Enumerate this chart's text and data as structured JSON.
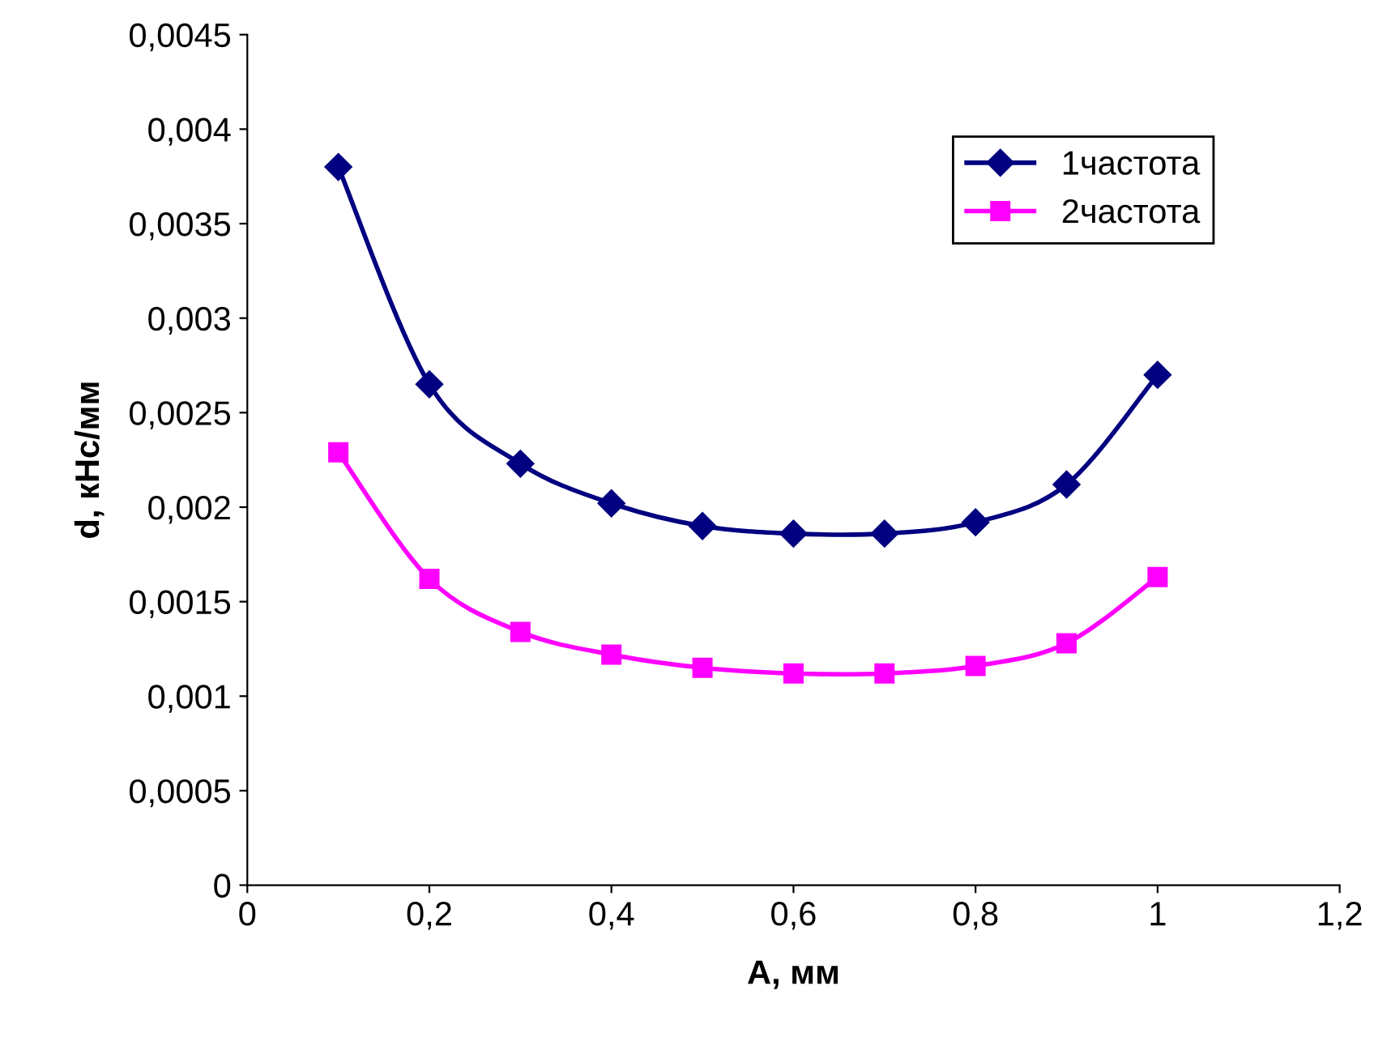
{
  "chart_data": {
    "type": "line",
    "xlabel": "A, мм",
    "ylabel": "d, кНс/мм",
    "x": [
      0.1,
      0.2,
      0.3,
      0.4,
      0.5,
      0.6,
      0.7,
      0.8,
      0.9,
      1.0
    ],
    "series": [
      {
        "name": "1частота",
        "color": "#000080",
        "marker": "diamond",
        "values": [
          0.0038,
          0.00265,
          0.00223,
          0.00202,
          0.0019,
          0.00186,
          0.00186,
          0.00192,
          0.00212,
          0.0027
        ]
      },
      {
        "name": "2частота",
        "color": "#ff00ff",
        "marker": "square",
        "values": [
          0.00229,
          0.00162,
          0.00134,
          0.00122,
          0.00115,
          0.00112,
          0.00112,
          0.00116,
          0.00128,
          0.00163
        ]
      }
    ],
    "xlim": [
      0,
      1.2
    ],
    "xticks": [
      0,
      {
        "value": 0.2,
        "label": "0,2"
      },
      {
        "value": 0.4,
        "label": "0,4"
      },
      {
        "value": 0.6,
        "label": "0,6"
      },
      {
        "value": 0.8,
        "label": "0,8"
      },
      1,
      {
        "value": 1.2,
        "label": "1,2"
      }
    ],
    "ylim": [
      0,
      0.0045
    ],
    "yticks": [
      0,
      {
        "value": 0.0005,
        "label": "0,0005"
      },
      {
        "value": 0.001,
        "label": "0,001"
      },
      {
        "value": 0.0015,
        "label": "0,0015"
      },
      {
        "value": 0.002,
        "label": "0,002"
      },
      {
        "value": 0.0025,
        "label": "0,0025"
      },
      {
        "value": 0.003,
        "label": "0,003"
      },
      {
        "value": 0.0035,
        "label": "0,0035"
      },
      {
        "value": 0.004,
        "label": "0,004"
      },
      {
        "value": 0.0045,
        "label": "0,0045"
      }
    ],
    "grid": false,
    "legend": "top right",
    "line_style": "solid"
  }
}
